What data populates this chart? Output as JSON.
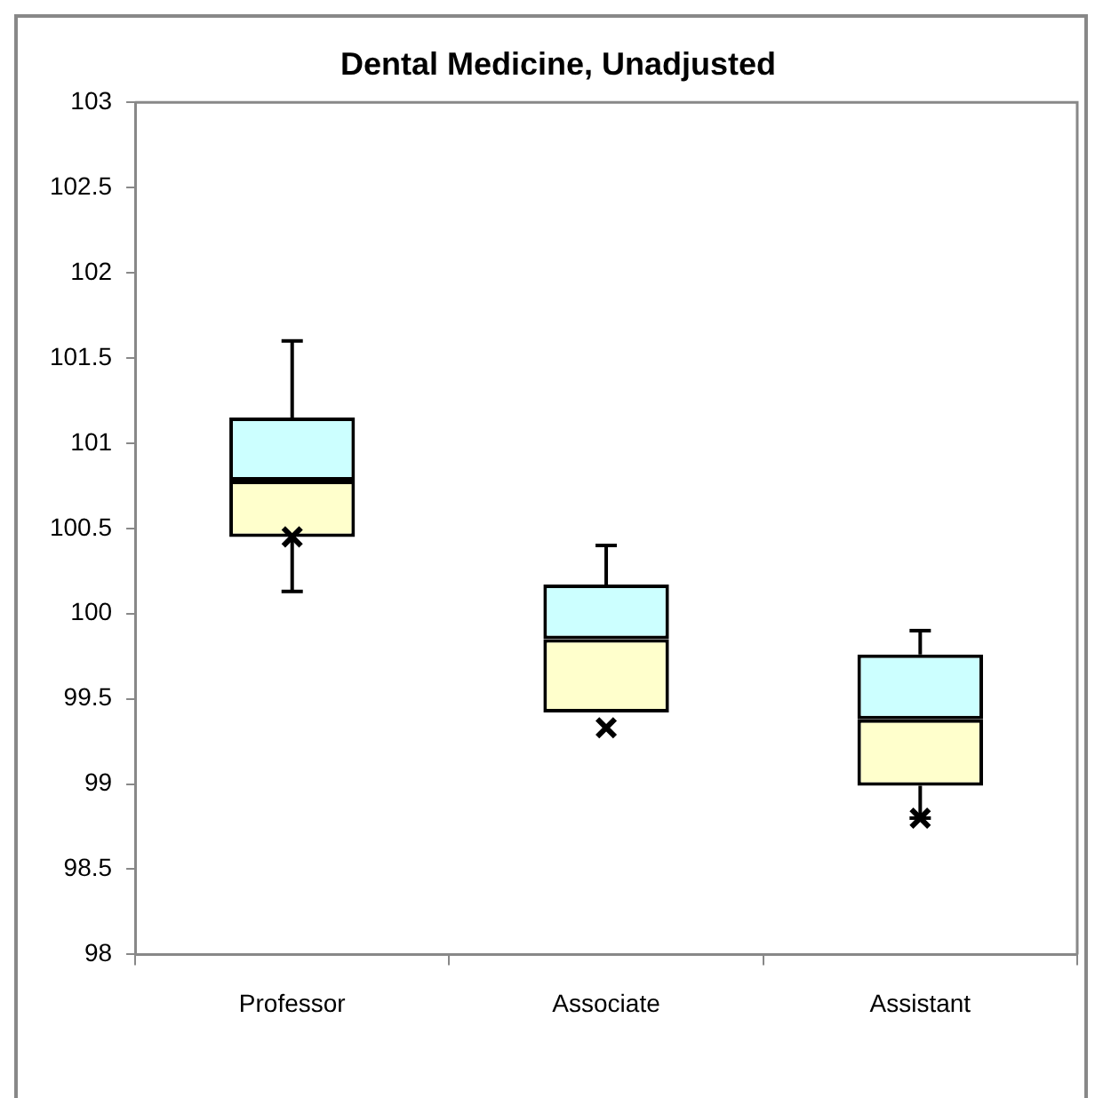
{
  "chart_data": {
    "type": "box",
    "title": "Dental Medicine, Unadjusted",
    "categories": [
      "Professor",
      "Associate",
      "Assistant"
    ],
    "series": [
      {
        "colors": [
          [
            "#ffffcc",
            "#ccffff"
          ],
          [
            "#ffffcc",
            "#ccffff"
          ],
          [
            "#ffffcc",
            "#ccffff"
          ]
        ],
        "marker": "cross",
        "boxes": [
          {
            "low": 100.13,
            "q1": 100.45,
            "median": 100.78,
            "q3": 101.15,
            "high": 101.6,
            "mean": 100.45
          },
          {
            "low": 99.42,
            "q1": 99.42,
            "median": 99.85,
            "q3": 100.17,
            "high": 100.4,
            "mean": 99.33
          },
          {
            "low": 98.8,
            "q1": 98.99,
            "median": 99.38,
            "q3": 99.76,
            "high": 99.9,
            "mean": 98.8
          }
        ]
      }
    ],
    "ylim": [
      98,
      103
    ],
    "yticks": [
      98,
      98.5,
      99,
      99.5,
      100,
      100.5,
      101,
      101.5,
      102,
      102.5,
      103
    ],
    "grid": false,
    "legend": false
  }
}
